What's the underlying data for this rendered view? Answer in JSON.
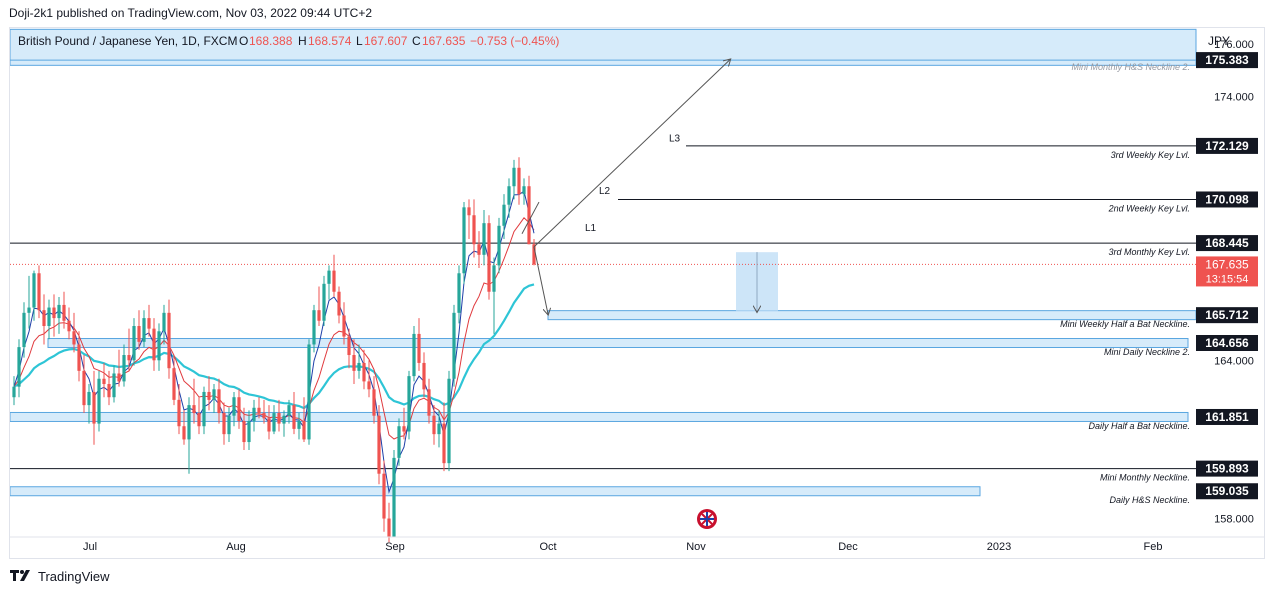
{
  "header": {
    "publisher": "Doji-2k1 published on TradingView.com, Nov 03, 2022 09:44 UTC+2"
  },
  "footer": {
    "brand": "TradingView"
  },
  "chart_data": {
    "type": "candlestick",
    "symbol": {
      "name": "British Pound / Japanese Yen, 1D, FXCM",
      "o_label": "O",
      "o": "168.388",
      "h_label": "H",
      "h": "168.574",
      "l_label": "L",
      "l": "167.607",
      "c_label": "C",
      "c": "167.635",
      "change": "−0.753 (−0.45%)"
    },
    "currency": "JPY",
    "ylim": [
      157.3,
      176.6
    ],
    "yticks": [
      "176.000",
      "174.000",
      "164.000",
      "158.000"
    ],
    "xticks": [
      "Jul",
      "Aug",
      "Sep",
      "Oct",
      "Nov",
      "Dec",
      "2023",
      "Feb"
    ],
    "last_price": {
      "value": "167.635",
      "countdown": "13:15:54"
    },
    "colors": {
      "up": "#26a69a",
      "down": "#ef5350",
      "ma_fast": "#1e3fa8",
      "ma_mid": "#e03a3e",
      "ma_slow": "#2ec5d6",
      "zone_fill": "#d6ebfa",
      "zone_border": "#5aa6e0"
    },
    "levels": [
      {
        "value": 175.383,
        "label": "175.383",
        "note": "Mini Monthly H&S Neckline 2.",
        "style": "zone"
      },
      {
        "value": 172.129,
        "label": "172.129",
        "note": "3rd Weekly Key Lvl.",
        "style": "line"
      },
      {
        "value": 170.098,
        "label": "170.098",
        "note": "2nd Weekly Key Lvl.",
        "style": "line"
      },
      {
        "value": 168.445,
        "label": "168.445",
        "note": "3rd Monthly Key Lvl.",
        "style": "line"
      },
      {
        "value": 165.712,
        "label": "165.712",
        "note": "Mini Weekly Half a Bat Neckline.",
        "style": "zone"
      },
      {
        "value": 164.656,
        "label": "164.656",
        "note": "Mini Daily Neckline 2.",
        "style": "zone"
      },
      {
        "value": 161.851,
        "label": "161.851",
        "note": "Daily Half a Bat Neckline.",
        "style": "zone"
      },
      {
        "value": 159.893,
        "label": "159.893",
        "note": "Mini Monthly Neckline.",
        "style": "line"
      },
      {
        "value": 159.035,
        "label": "159.035",
        "note": "Daily H&S Neckline.",
        "style": "zone"
      }
    ],
    "pattern_labels": [
      "L1",
      "L2",
      "L3"
    ],
    "candles": [
      [
        162.6,
        163.4,
        162.3,
        163.0
      ],
      [
        163.0,
        164.8,
        162.6,
        164.5
      ],
      [
        164.5,
        166.2,
        164.1,
        165.8
      ],
      [
        165.8,
        167.2,
        165.2,
        166.0
      ],
      [
        166.0,
        167.4,
        165.5,
        167.3
      ],
      [
        167.3,
        167.6,
        165.6,
        165.9
      ],
      [
        165.9,
        166.5,
        164.6,
        165.3
      ],
      [
        165.3,
        166.3,
        164.8,
        166.0
      ],
      [
        166.0,
        166.5,
        164.9,
        165.6
      ],
      [
        165.6,
        166.4,
        165.0,
        166.1
      ],
      [
        166.1,
        166.6,
        165.2,
        165.5
      ],
      [
        165.5,
        166.0,
        164.8,
        165.1
      ],
      [
        165.1,
        165.8,
        164.3,
        164.6
      ],
      [
        164.6,
        165.1,
        163.2,
        163.6
      ],
      [
        163.6,
        164.2,
        162.0,
        162.3
      ],
      [
        162.3,
        163.1,
        161.6,
        162.8
      ],
      [
        162.8,
        163.6,
        160.8,
        161.6
      ],
      [
        161.6,
        163.6,
        161.3,
        163.3
      ],
      [
        163.3,
        163.9,
        162.6,
        163.1
      ],
      [
        163.1,
        163.6,
        162.3,
        162.6
      ],
      [
        162.6,
        163.8,
        162.4,
        163.5
      ],
      [
        163.5,
        164.4,
        163.0,
        163.2
      ],
      [
        163.2,
        164.6,
        163.0,
        164.2
      ],
      [
        164.2,
        165.2,
        163.6,
        164.0
      ],
      [
        164.0,
        165.6,
        163.8,
        165.3
      ],
      [
        165.3,
        165.9,
        164.4,
        164.7
      ],
      [
        164.7,
        165.9,
        164.5,
        165.6
      ],
      [
        165.6,
        166.1,
        164.9,
        165.2
      ],
      [
        165.2,
        165.6,
        163.6,
        164.0
      ],
      [
        164.0,
        165.4,
        163.6,
        165.1
      ],
      [
        165.1,
        166.1,
        164.6,
        165.8
      ],
      [
        165.8,
        166.3,
        163.3,
        163.7
      ],
      [
        163.7,
        164.2,
        162.3,
        162.5
      ],
      [
        162.5,
        163.1,
        161.2,
        161.5
      ],
      [
        161.5,
        162.1,
        160.8,
        161.0
      ],
      [
        161.0,
        162.6,
        159.7,
        162.3
      ],
      [
        162.3,
        163.3,
        161.6,
        162.0
      ],
      [
        162.0,
        162.6,
        161.2,
        161.5
      ],
      [
        161.5,
        163.0,
        161.2,
        162.8
      ],
      [
        162.8,
        163.4,
        162.1,
        162.5
      ],
      [
        162.5,
        163.1,
        162.0,
        162.9
      ],
      [
        162.9,
        163.3,
        161.6,
        162.0
      ],
      [
        162.0,
        162.4,
        160.8,
        161.2
      ],
      [
        161.2,
        162.2,
        160.9,
        161.9
      ],
      [
        161.9,
        162.8,
        161.5,
        162.6
      ],
      [
        162.6,
        162.9,
        161.4,
        161.7
      ],
      [
        161.7,
        162.2,
        160.6,
        160.9
      ],
      [
        160.9,
        162.1,
        160.6,
        161.7
      ],
      [
        161.7,
        162.5,
        161.3,
        162.2
      ],
      [
        162.2,
        162.6,
        161.8,
        162.0
      ],
      [
        162.0,
        162.5,
        161.6,
        161.8
      ],
      [
        161.8,
        162.3,
        161.0,
        161.3
      ],
      [
        161.3,
        162.3,
        161.2,
        162.0
      ],
      [
        162.0,
        162.5,
        161.3,
        161.6
      ],
      [
        161.6,
        162.1,
        161.1,
        161.9
      ],
      [
        161.9,
        162.5,
        161.6,
        162.3
      ],
      [
        162.3,
        162.8,
        161.2,
        161.4
      ],
      [
        161.4,
        162.0,
        161.0,
        161.7
      ],
      [
        161.7,
        162.6,
        160.9,
        161.0
      ],
      [
        161.0,
        164.8,
        160.8,
        164.6
      ],
      [
        164.6,
        166.1,
        164.3,
        165.9
      ],
      [
        165.9,
        166.8,
        165.3,
        165.5
      ],
      [
        165.5,
        167.2,
        165.3,
        166.9
      ],
      [
        166.9,
        167.6,
        166.3,
        167.4
      ],
      [
        167.4,
        168.0,
        166.4,
        166.6
      ],
      [
        166.6,
        166.8,
        165.4,
        165.7
      ],
      [
        165.7,
        166.2,
        164.6,
        164.9
      ],
      [
        164.9,
        165.2,
        163.7,
        164.2
      ],
      [
        164.2,
        164.8,
        163.1,
        163.6
      ],
      [
        163.6,
        164.6,
        163.3,
        163.9
      ],
      [
        163.9,
        164.4,
        162.9,
        163.2
      ],
      [
        163.2,
        164.0,
        162.6,
        162.9
      ],
      [
        162.9,
        163.4,
        161.6,
        161.9
      ],
      [
        161.9,
        162.3,
        159.3,
        159.7
      ],
      [
        159.7,
        160.2,
        157.5,
        158.0
      ],
      [
        158.0,
        158.6,
        157.1,
        157.3
      ],
      [
        157.3,
        160.6,
        157.3,
        160.3
      ],
      [
        160.3,
        161.8,
        160.0,
        161.5
      ],
      [
        161.5,
        162.2,
        161.0,
        161.3
      ],
      [
        161.3,
        163.6,
        161.0,
        163.4
      ],
      [
        163.4,
        165.3,
        163.2,
        165.0
      ],
      [
        165.0,
        165.6,
        163.6,
        163.9
      ],
      [
        163.9,
        164.3,
        162.6,
        162.9
      ],
      [
        162.9,
        163.3,
        161.6,
        161.9
      ],
      [
        161.9,
        162.3,
        160.8,
        161.2
      ],
      [
        161.2,
        162.1,
        160.7,
        161.6
      ],
      [
        161.6,
        162.4,
        159.8,
        160.1
      ],
      [
        160.1,
        163.6,
        159.8,
        163.3
      ],
      [
        163.3,
        166.1,
        163.0,
        165.8
      ],
      [
        165.8,
        167.6,
        165.4,
        167.3
      ],
      [
        167.3,
        170.0,
        166.9,
        169.8
      ],
      [
        169.8,
        170.1,
        168.6,
        169.5
      ],
      [
        169.5,
        170.1,
        167.9,
        168.4
      ],
      [
        168.4,
        168.9,
        167.5,
        168.0
      ],
      [
        168.0,
        169.7,
        167.6,
        169.2
      ],
      [
        169.2,
        169.5,
        166.3,
        166.6
      ],
      [
        166.6,
        167.9,
        165.0,
        167.6
      ],
      [
        167.6,
        169.4,
        167.3,
        169.1
      ],
      [
        169.1,
        170.3,
        168.6,
        169.9
      ],
      [
        169.9,
        170.9,
        169.4,
        170.6
      ],
      [
        170.6,
        171.6,
        170.1,
        171.3
      ],
      [
        171.3,
        171.7,
        169.9,
        170.3
      ],
      [
        170.3,
        170.9,
        169.9,
        170.6
      ],
      [
        170.6,
        171.0,
        168.4,
        168.4
      ],
      [
        168.4,
        168.6,
        167.6,
        167.635
      ]
    ]
  }
}
